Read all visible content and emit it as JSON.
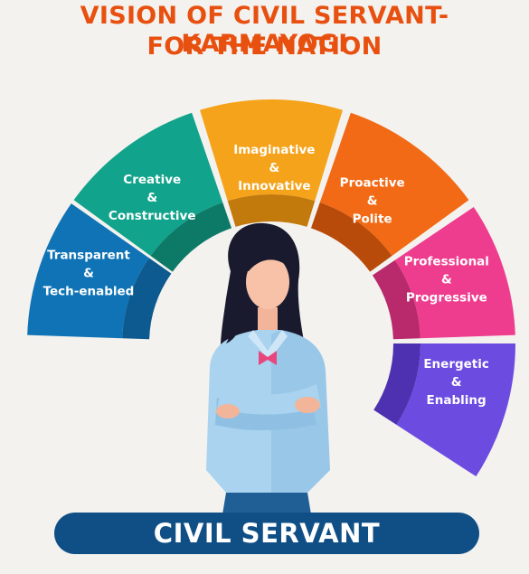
{
  "title": {
    "line1": "VISION OF CIVIL SERVANT-KARMAYOGI",
    "line2": "FOR THE NATION"
  },
  "segments": [
    {
      "id": "transparent",
      "lines": [
        "Transparent",
        "&",
        "Tech-enabled"
      ],
      "color": "#0f73b5",
      "inner": "#0c5a8f"
    },
    {
      "id": "creative",
      "lines": [
        "Creative",
        "&",
        "Constructive"
      ],
      "color": "#11a38b",
      "inner": "#0d7a68"
    },
    {
      "id": "imaginative",
      "lines": [
        "Imaginative",
        "&",
        "Innovative"
      ],
      "color": "#f5a31a",
      "inner": "#c27a0c"
    },
    {
      "id": "proactive",
      "lines": [
        "Proactive",
        "&",
        "Polite"
      ],
      "color": "#f26a15",
      "inner": "#b84a0a"
    },
    {
      "id": "professional",
      "lines": [
        "Professional",
        "&",
        "Progressive"
      ],
      "color": "#ee3c8e",
      "inner": "#b82a6b"
    },
    {
      "id": "energetic",
      "lines": [
        "Energetic",
        "&",
        "Enabling"
      ],
      "color": "#6c4be0",
      "inner": "#4e31b0"
    }
  ],
  "banner": {
    "label": "CIVIL SERVANT"
  },
  "figure": {
    "icon": "woman-civil-servant-illustration"
  }
}
